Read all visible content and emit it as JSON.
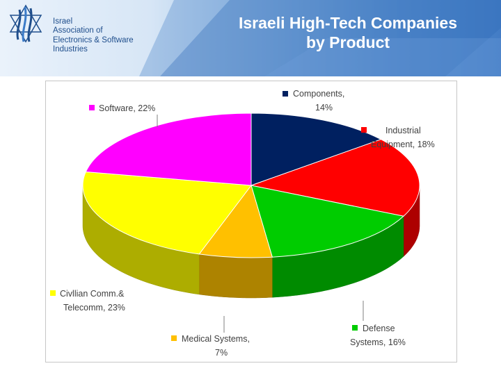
{
  "header": {
    "org_lines": [
      "Israel",
      "Association of",
      "Electronics & Software",
      "Industries"
    ],
    "title_lines": [
      "Israeli High-Tech Companies",
      "by Product"
    ],
    "title_color": "#ffffff",
    "org_color": "#1f4e8c",
    "logo_icon": "star-of-david-wave-logo"
  },
  "chart_data": {
    "type": "pie",
    "style": "3d",
    "title": "",
    "unit": "%",
    "slices": [
      {
        "label": "Components,",
        "value": 14,
        "value_label": "14%",
        "color": "#002060"
      },
      {
        "label": "Industrial Equipment,",
        "value": 18,
        "value_label": "18%",
        "color": "#ff0000"
      },
      {
        "label": "Defense Systems,",
        "value": 16,
        "value_label": "16%",
        "color": "#00cc00"
      },
      {
        "label": "Medical Systems,",
        "value": 7,
        "value_label": "7%",
        "color": "#ffc000"
      },
      {
        "label": "Civllian Comm.& Telecomm,",
        "value": 23,
        "value_label": "23%",
        "color": "#ffff00"
      },
      {
        "label": "Software,",
        "value": 22,
        "value_label": "22%",
        "color": "#ff00ff"
      }
    ]
  }
}
